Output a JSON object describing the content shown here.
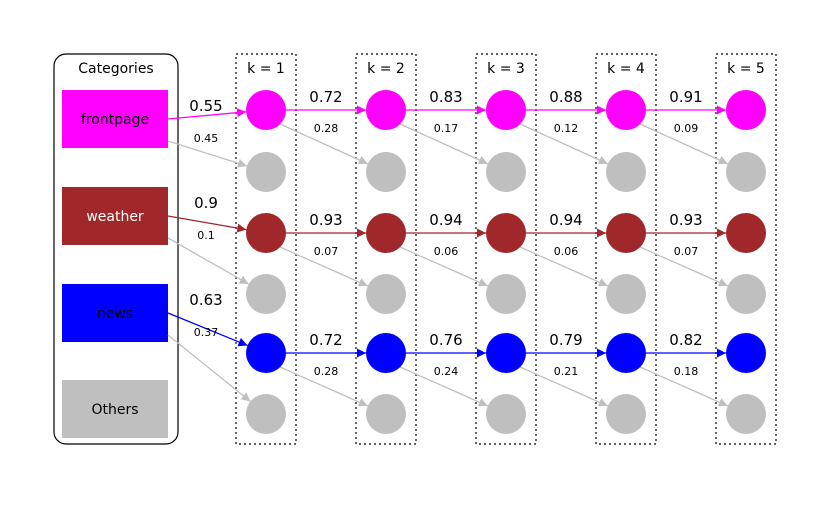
{
  "legend": {
    "title": "Categories",
    "items": [
      {
        "label": "frontpage",
        "color": "#ff00ff",
        "text_color": "#000000"
      },
      {
        "label": "weather",
        "color": "#a0272a",
        "text_color": "#ffffff"
      },
      {
        "label": "news",
        "color": "#0000ff",
        "text_color": "#000000"
      },
      {
        "label": "Others",
        "color": "#bfbfbf",
        "text_color": "#000000"
      }
    ]
  },
  "steps": [
    "k = 1",
    "k = 2",
    "k = 3",
    "k = 4",
    "k = 5"
  ],
  "node_colors": {
    "frontpage": "#ff00ff",
    "weather": "#a0272a",
    "news": "#0000ff",
    "others": "#bfbfbf"
  },
  "transitions": [
    {
      "category": "frontpage",
      "stay": [
        "0.55",
        "0.72",
        "0.83",
        "0.88",
        "0.91"
      ],
      "leave": [
        "0.45",
        "0.28",
        "0.17",
        "0.12",
        "0.09"
      ]
    },
    {
      "category": "weather",
      "stay": [
        "0.9",
        "0.93",
        "0.94",
        "0.94",
        "0.93"
      ],
      "leave": [
        "0.1",
        "0.07",
        "0.06",
        "0.06",
        "0.07"
      ]
    },
    {
      "category": "news",
      "stay": [
        "0.63",
        "0.72",
        "0.76",
        "0.79",
        "0.82"
      ],
      "leave": [
        "0.37",
        "0.28",
        "0.24",
        "0.21",
        "0.18"
      ]
    }
  ]
}
